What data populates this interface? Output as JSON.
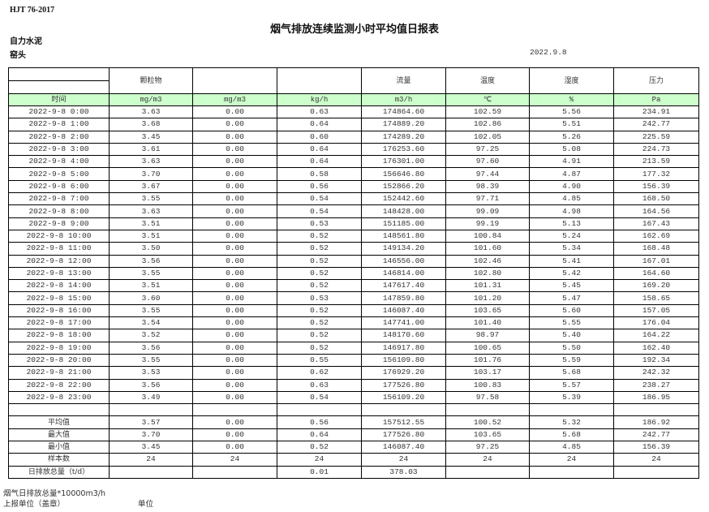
{
  "standard": "HJT  76-2017",
  "title": "烟气排放连续监测小时平均值日报表",
  "company": "自力水泥",
  "site": "窑头",
  "date": "2022.9.8",
  "header": {
    "params": [
      "颗粒物",
      "",
      "",
      "流量",
      "温度",
      "湿度",
      "压力"
    ],
    "time_label": "时间",
    "units": [
      "mg/m3",
      "mg/m3",
      "kg/h",
      "m3/h",
      "℃",
      "%",
      "Pa"
    ]
  },
  "rows": [
    [
      "2022-9-8 0:00",
      "3.63",
      "0.00",
      "0.63",
      "174864.60",
      "102.59",
      "5.56",
      "234.91"
    ],
    [
      "2022-9-8 1:00",
      "3.68",
      "0.00",
      "0.64",
      "174889.20",
      "102.86",
      "5.51",
      "242.77"
    ],
    [
      "2022-9-8 2:00",
      "3.45",
      "0.00",
      "0.60",
      "174289.20",
      "102.05",
      "5.26",
      "225.59"
    ],
    [
      "2022-9-8 3:00",
      "3.61",
      "0.00",
      "0.64",
      "176253.60",
      "97.25",
      "5.08",
      "224.73"
    ],
    [
      "2022-9-8 4:00",
      "3.63",
      "0.00",
      "0.64",
      "176301.00",
      "97.60",
      "4.91",
      "213.59"
    ],
    [
      "2022-9-8 5:00",
      "3.70",
      "0.00",
      "0.58",
      "156646.80",
      "97.44",
      "4.87",
      "177.32"
    ],
    [
      "2022-9-8 6:00",
      "3.67",
      "0.00",
      "0.56",
      "152866.20",
      "98.39",
      "4.90",
      "156.39"
    ],
    [
      "2022-9-8 7:00",
      "3.55",
      "0.00",
      "0.54",
      "152442.60",
      "97.71",
      "4.85",
      "168.50"
    ],
    [
      "2022-9-8 8:00",
      "3.63",
      "0.00",
      "0.54",
      "148428.00",
      "99.09",
      "4.98",
      "164.56"
    ],
    [
      "2022-9-8 9:00",
      "3.51",
      "0.00",
      "0.53",
      "151185.00",
      "99.19",
      "5.13",
      "167.43"
    ],
    [
      "2022-9-8 10:00",
      "3.51",
      "0.00",
      "0.52",
      "148561.80",
      "100.84",
      "5.24",
      "162.69"
    ],
    [
      "2022-9-8 11:00",
      "3.50",
      "0.00",
      "0.52",
      "149134.20",
      "101.60",
      "5.34",
      "168.48"
    ],
    [
      "2022-9-8 12:00",
      "3.56",
      "0.00",
      "0.52",
      "146556.00",
      "102.46",
      "5.41",
      "167.01"
    ],
    [
      "2022-9-8 13:00",
      "3.55",
      "0.00",
      "0.52",
      "146814.00",
      "102.80",
      "5.42",
      "164.60"
    ],
    [
      "2022-9-8 14:00",
      "3.51",
      "0.00",
      "0.52",
      "147617.40",
      "101.31",
      "5.45",
      "169.20"
    ],
    [
      "2022-9-8 15:00",
      "3.60",
      "0.00",
      "0.53",
      "147859.80",
      "101.20",
      "5.47",
      "158.65"
    ],
    [
      "2022-9-8 16:00",
      "3.55",
      "0.00",
      "0.52",
      "146087.40",
      "103.65",
      "5.60",
      "157.05"
    ],
    [
      "2022-9-8 17:00",
      "3.54",
      "0.00",
      "0.52",
      "147741.00",
      "101.40",
      "5.55",
      "176.04"
    ],
    [
      "2022-9-8 18:00",
      "3.52",
      "0.00",
      "0.52",
      "148170.60",
      "98.97",
      "5.40",
      "164.22"
    ],
    [
      "2022-9-8 19:00",
      "3.56",
      "0.00",
      "0.52",
      "146917.80",
      "100.65",
      "5.50",
      "162.40"
    ],
    [
      "2022-9-8 20:00",
      "3.55",
      "0.00",
      "0.55",
      "156109.80",
      "101.76",
      "5.59",
      "192.34"
    ],
    [
      "2022-9-8 21:00",
      "3.53",
      "0.00",
      "0.62",
      "176929.20",
      "103.17",
      "5.68",
      "242.32"
    ],
    [
      "2022-9-8 22:00",
      "3.56",
      "0.00",
      "0.63",
      "177526.80",
      "100.83",
      "5.57",
      "238.27"
    ],
    [
      "2022-9-8 23:00",
      "3.49",
      "0.00",
      "0.54",
      "156109.20",
      "97.58",
      "5.39",
      "186.95"
    ]
  ],
  "stats": [
    [
      "平均值",
      "3.57",
      "0.00",
      "0.56",
      "157512.55",
      "100.52",
      "5.32",
      "186.92"
    ],
    [
      "最大值",
      "3.70",
      "0.00",
      "0.64",
      "177526.80",
      "103.65",
      "5.68",
      "242.77"
    ],
    [
      "最小值",
      "3.45",
      "0.00",
      "0.52",
      "146087.40",
      "97.25",
      "4.85",
      "156.39"
    ],
    [
      "样本数",
      "24",
      "24",
      "24",
      "24",
      "24",
      "24",
      "24"
    ],
    [
      "日排放总量（t/d）",
      "",
      "",
      "0.01",
      "378.03",
      "",
      "",
      ""
    ]
  ],
  "footer": {
    "flue_total": "烟气日排放总量*10000m3/h",
    "reporting_unit": "上报单位（盖章）",
    "unit_label": "单位"
  }
}
